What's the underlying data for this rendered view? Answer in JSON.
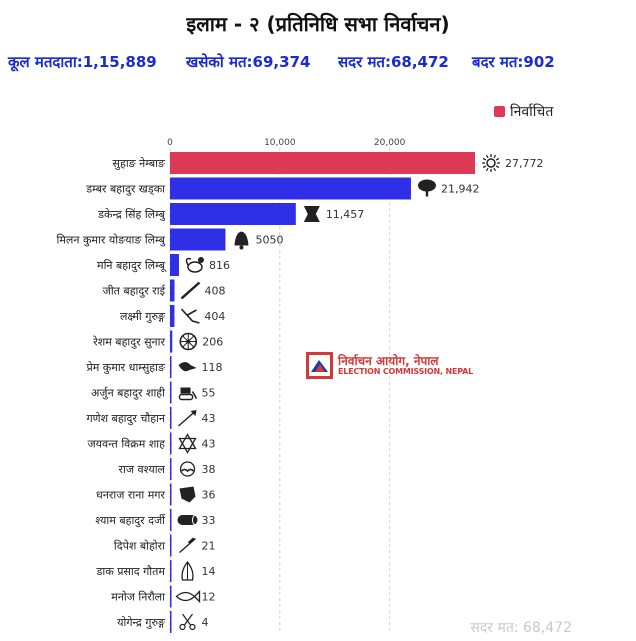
{
  "header": {
    "title": "इलाम - २ (प्रतिनिधि सभा निर्वाचन)",
    "stats": {
      "total": "कूल मतदाता:1,15,889",
      "cast": "खसेको मत:69,374",
      "valid": "सदर मत:68,472",
      "invalid": "बदर मत:902"
    }
  },
  "legend": {
    "label": "निर्वाचित",
    "color": "#dc3a55"
  },
  "watermark": {
    "nepali": "निर्वाचन आयोग, नेपाल",
    "english": "ELECTION COMMISSION, NEPAL"
  },
  "footer": {
    "valid_votes": "सदर मत: 68,472"
  },
  "colors": {
    "elected": "#dc3a55",
    "candidate": "#2f2fe8",
    "grid": "#d0d0d0"
  },
  "chart_data": {
    "type": "bar",
    "orientation": "horizontal",
    "x_ticks": [
      {
        "value": 0,
        "label": "0"
      },
      {
        "value": 10000,
        "label": "10,000"
      },
      {
        "value": 20000,
        "label": "20,000"
      }
    ],
    "xlim": [
      0,
      27772
    ],
    "categories": [
      "सुहाङ नेम्बाङ",
      "डम्बर बहादुर खड्का",
      "डकेन्द्र सिंह लिम्बु",
      "मिलन कुमार योङयाङ लिम्बु",
      "मनि बहादुर लिम्बू",
      "जीत बहादुर राई",
      "लक्ष्मी गुरुङ्ग",
      "रेशम बहादुर सुनार",
      "प्रेम कुमार धाम्सुहाङ",
      "अर्जुन बहादुर शाही",
      "गणेश बहादुर चौहान",
      "जयवन्त विक्रम शाह",
      "राज वश्याल",
      "धनराज राना मगर",
      "श्याम बहादुर दर्जी",
      "दिपेश बोहोरा",
      "डाक प्रसाद गौतम",
      "मनोज निरौला",
      "योगेन्द्र गुरुङ्ग"
    ],
    "values": [
      27772,
      21942,
      11457,
      5050,
      816,
      408,
      404,
      206,
      118,
      55,
      43,
      43,
      38,
      36,
      33,
      21,
      14,
      12,
      4
    ],
    "value_labels": [
      "27,772",
      "21,942",
      "11,457",
      "5050",
      "816",
      "408",
      "404",
      "206",
      "118",
      "55",
      "43",
      "43",
      "38",
      "36",
      "33",
      "21",
      "14",
      "12",
      "4"
    ],
    "elected": [
      true,
      false,
      false,
      false,
      false,
      false,
      false,
      false,
      false,
      false,
      false,
      false,
      false,
      false,
      false,
      false,
      false,
      false,
      false
    ],
    "symbols": [
      "sun-icon",
      "tree-icon",
      "drum-icon",
      "bell-icon",
      "rooster-icon",
      "pen-icon",
      "plough-icon",
      "wheel-icon",
      "bird-icon",
      "bulldozer-icon",
      "arrow-icon",
      "star-of-david-icon",
      "mustache-face-icon",
      "fist-icon",
      "log-icon",
      "screwdriver-icon",
      "folded-hands-icon",
      "fish-icon",
      "scissors-icon"
    ],
    "grid": true,
    "legend_position": "top-right"
  }
}
